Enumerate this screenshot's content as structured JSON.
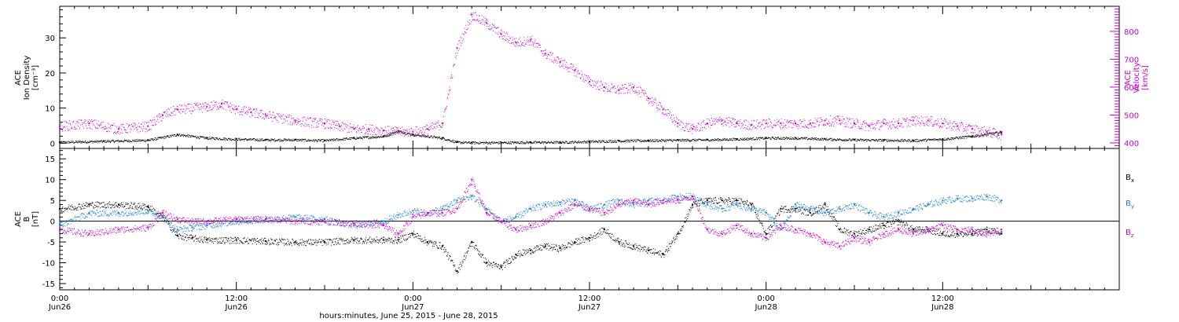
{
  "chart_data": [
    {
      "type": "scatter",
      "panel": "top",
      "ylabel_left": [
        "ACE",
        "Ion Density",
        "[cm⁻³]"
      ],
      "ylabel_right": [
        "ACE",
        "Velocity",
        "[km/s]"
      ],
      "ylim_left": [
        -1.5,
        39
      ],
      "ylim_right": [
        380,
        890
      ],
      "yticks_left": [
        "0",
        "10",
        "20",
        "30"
      ],
      "yticks_right": [
        "400",
        "500",
        "600",
        "700",
        "800"
      ],
      "xlim_hours": [
        0,
        72
      ],
      "series": [
        {
          "name": "",
          "axis": "left",
          "color": "#000000",
          "x_hours": [
            0,
            3,
            6,
            8,
            10,
            12,
            14,
            16,
            18,
            20,
            22,
            23,
            24,
            26,
            27,
            28,
            30,
            32,
            34,
            36,
            38,
            40,
            42,
            44,
            46,
            48,
            50,
            52,
            54,
            56,
            58,
            60,
            62,
            64
          ],
          "values": [
            0.3,
            0.6,
            0.9,
            2.5,
            1.5,
            1.2,
            1.0,
            1.0,
            0.8,
            1.5,
            2.0,
            3.5,
            2.5,
            1.5,
            0.3,
            0.2,
            0.2,
            0.3,
            0.3,
            0.5,
            0.7,
            0.8,
            0.9,
            1.0,
            1.2,
            1.5,
            1.5,
            1.2,
            1.0,
            0.9,
            0.8,
            1.2,
            2.0,
            3.2
          ]
        },
        {
          "name": "",
          "axis": "right",
          "color": "#cc00cc",
          "x_hours": [
            0,
            2,
            4,
            6,
            7,
            8,
            10,
            11,
            12,
            13,
            14,
            16,
            18,
            19,
            20,
            21,
            22,
            23,
            24,
            25,
            26,
            27,
            28,
            29,
            30,
            31,
            32,
            33,
            34,
            35,
            36,
            37,
            38,
            39,
            40,
            41,
            42,
            43,
            44,
            45,
            46,
            47,
            48,
            49,
            50,
            51,
            52,
            53,
            54,
            55,
            56,
            57,
            58,
            59,
            60,
            61,
            62,
            63,
            64
          ],
          "values": [
            460,
            470,
            450,
            460,
            500,
            520,
            530,
            540,
            520,
            510,
            500,
            480,
            470,
            460,
            450,
            450,
            445,
            440,
            440,
            450,
            470,
            740,
            860,
            830,
            790,
            760,
            770,
            720,
            690,
            660,
            620,
            600,
            590,
            600,
            560,
            520,
            470,
            450,
            470,
            480,
            470,
            465,
            470,
            470,
            470,
            470,
            480,
            480,
            470,
            460,
            470,
            470,
            480,
            480,
            470,
            460,
            450,
            440,
            430
          ]
        }
      ]
    },
    {
      "type": "scatter",
      "panel": "bottom",
      "ylabel": [
        "ACE",
        "B",
        "[nT]"
      ],
      "ylim": [
        -16.5,
        17.5
      ],
      "yticks": [
        "-15",
        "-10",
        "-5",
        "0",
        "5",
        "10",
        "15"
      ],
      "xlim_hours": [
        0,
        72
      ],
      "series": [
        {
          "name": "B",
          "sub": "x",
          "color": "#000000",
          "x_hours": [
            0,
            2,
            4,
            6,
            7,
            8,
            9,
            10,
            12,
            14,
            16,
            18,
            20,
            22,
            23,
            24,
            25,
            26,
            27,
            28,
            29,
            30,
            31,
            32,
            33,
            34,
            35,
            36,
            37,
            38,
            39,
            40,
            41,
            42,
            43,
            44,
            45,
            46,
            47,
            48,
            49,
            50,
            51,
            52,
            53,
            54,
            55,
            56,
            57,
            58,
            59,
            60,
            61,
            62,
            63,
            64
          ],
          "values": [
            3,
            4,
            4,
            3.5,
            1,
            -3.5,
            -4,
            -4.5,
            -4.5,
            -4.8,
            -5,
            -5,
            -4.5,
            -4.5,
            -4.5,
            -3,
            -5,
            -6,
            -12,
            -5,
            -10,
            -11,
            -8,
            -7,
            -6,
            -6.5,
            -5,
            -4,
            -2,
            -5,
            -6,
            -7,
            -8,
            -3,
            4,
            5,
            5,
            5,
            4,
            -3,
            3,
            3,
            2,
            4,
            -2,
            -3,
            -2,
            -1,
            0,
            -2,
            -2,
            -3,
            -3,
            -3,
            -2,
            -3
          ]
        },
        {
          "name": "B",
          "sub": "y",
          "color": "#1a7fd4",
          "x_hours": [
            0,
            2,
            4,
            6,
            7,
            8,
            9,
            10,
            12,
            14,
            16,
            18,
            20,
            22,
            23,
            24,
            25,
            26,
            27,
            28,
            29,
            30,
            31,
            32,
            33,
            34,
            35,
            36,
            37,
            38,
            39,
            40,
            41,
            42,
            43,
            44,
            45,
            46,
            47,
            48,
            49,
            50,
            51,
            52,
            53,
            54,
            55,
            56,
            57,
            58,
            59,
            60,
            61,
            62,
            63,
            64
          ],
          "values": [
            -1,
            2,
            2,
            2.5,
            1,
            -2,
            -1.5,
            -1,
            0,
            0.5,
            1,
            0.5,
            -1,
            0,
            1.5,
            2.5,
            2,
            3,
            5,
            6,
            3,
            0,
            1,
            3,
            4,
            4.5,
            5,
            3,
            4,
            5,
            4,
            5,
            5,
            6,
            6,
            4,
            3,
            4,
            3,
            2,
            -2,
            4,
            3,
            2,
            3,
            4,
            2,
            1,
            2,
            3,
            4,
            5,
            5.5,
            5.5,
            6,
            5
          ]
        },
        {
          "name": "B",
          "sub": "z",
          "color": "#cc00cc",
          "x_hours": [
            0,
            2,
            4,
            6,
            7,
            8,
            9,
            10,
            12,
            14,
            16,
            18,
            20,
            22,
            23,
            24,
            25,
            26,
            27,
            28,
            29,
            30,
            31,
            32,
            33,
            34,
            35,
            36,
            37,
            38,
            39,
            40,
            41,
            42,
            43,
            44,
            45,
            46,
            47,
            48,
            49,
            50,
            51,
            52,
            53,
            54,
            55,
            56,
            57,
            58,
            59,
            60,
            61,
            62,
            63,
            64
          ],
          "values": [
            -2,
            -3,
            -2,
            -1.5,
            2,
            0.5,
            0,
            0,
            0.5,
            0.5,
            0,
            0,
            -0.5,
            -1,
            -3,
            1,
            2,
            2,
            3,
            10,
            2,
            0,
            -2,
            -1,
            0,
            2,
            4,
            3,
            2,
            4,
            5,
            4,
            5,
            5,
            6,
            -2,
            -3,
            -1,
            -3,
            -4,
            -1,
            -2,
            -3,
            -5,
            -6,
            -4,
            -5,
            -3,
            -2,
            -3,
            -2,
            -1,
            -2,
            -2,
            -3,
            -2
          ]
        }
      ]
    },
    {
      "type": "time_axis",
      "ticks": [
        {
          "hours": 0,
          "time": "0:00",
          "date": "Jun26"
        },
        {
          "hours": 12,
          "time": "12:00",
          "date": "Jun26"
        },
        {
          "hours": 24,
          "time": "0:00",
          "date": "Jun27"
        },
        {
          "hours": 36,
          "time": "12:00",
          "date": "Jun27"
        },
        {
          "hours": 48,
          "time": "0:00",
          "date": "Jun28"
        },
        {
          "hours": 60,
          "time": "12:00",
          "date": "Jun28"
        }
      ],
      "xlabel": "hours:minutes, June 25, 2015 - June 28, 2015"
    }
  ],
  "legend": {
    "bx": {
      "main": "B",
      "sub": "x",
      "color": "#000000"
    },
    "by": {
      "main": "B",
      "sub": "y",
      "color": "#1a7fd4"
    },
    "bz": {
      "main": "B",
      "sub": "z",
      "color": "#cc00cc"
    }
  }
}
